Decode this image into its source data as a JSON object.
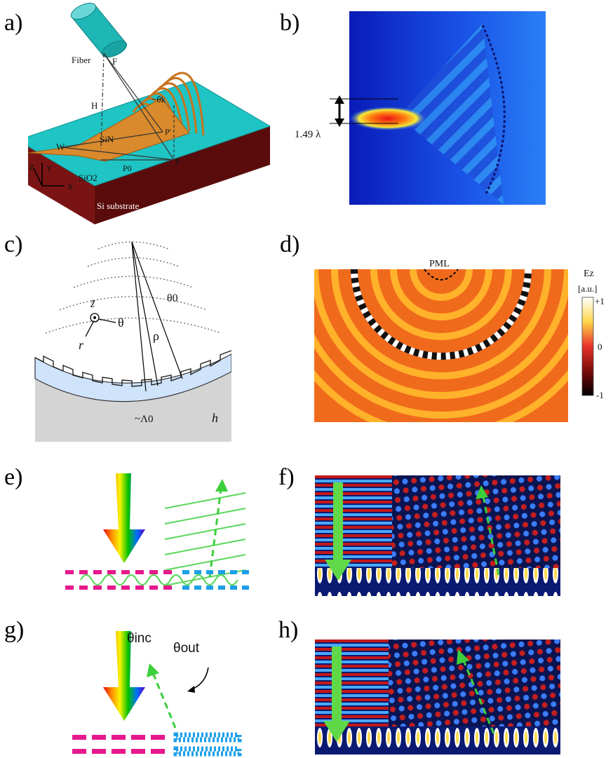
{
  "panels": {
    "a": {
      "label": "a)",
      "texts": {
        "fiber": "Fiber",
        "F": "F",
        "H": "H",
        "theta_k": "−θk",
        "W": "W",
        "SiN": "SiN",
        "Pprime": "P'",
        "P": "P",
        "P0": "P0",
        "Z": "Z",
        "Y": "Y",
        "X": "X",
        "SiO2": "SiO2",
        "substrate": "Si substrate"
      },
      "colors": {
        "fiber": "#1fb6b6",
        "top": "#1fc4c4",
        "side": "#7a1414",
        "sin": "#d98a2c",
        "grating": "#c8741e"
      }
    },
    "b": {
      "label": "b)",
      "dimension": "1.49 λ"
    },
    "c": {
      "label": "c)",
      "texts": {
        "z": "z̃",
        "theta": "θ",
        "r": "r",
        "theta0": "θ0",
        "rho": "ρ",
        "lambda0": "~Λ0",
        "h": "h"
      }
    },
    "d": {
      "label": "d)",
      "pml": "PML",
      "colorbar": {
        "title": "Ez",
        "unit": "[a.u.]",
        "ticks": [
          "+1",
          "0",
          "-1"
        ]
      }
    },
    "e": {
      "label": "e)"
    },
    "f": {
      "label": "f)"
    },
    "g": {
      "label": "g)",
      "theta_inc": "θinc",
      "theta_out": "θout"
    },
    "h": {
      "label": "h)"
    }
  }
}
